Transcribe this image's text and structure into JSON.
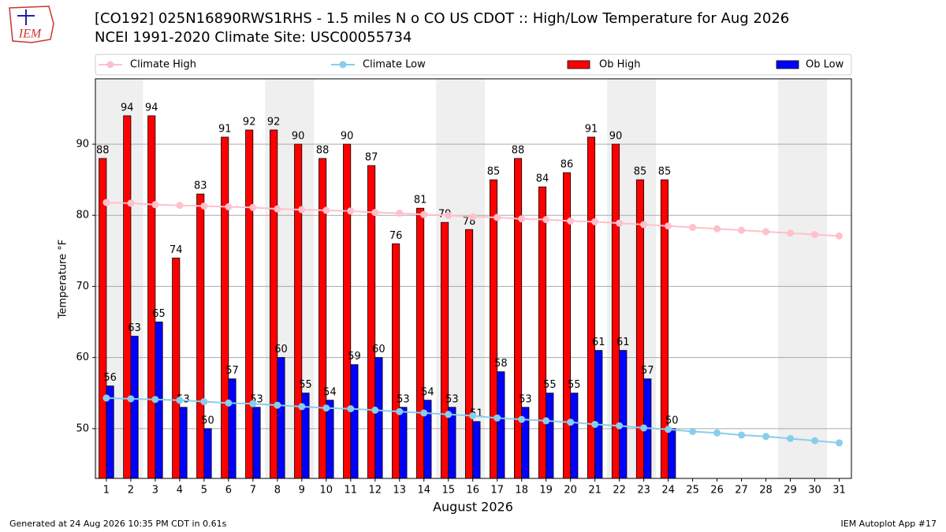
{
  "chart_data": {
    "type": "bar",
    "title": "[CO192] 025N16890RWS1RHS - 1.5 miles N o CO US CDOT :: High/Low Temperature for Aug 2026",
    "subtitle": "NCEI 1991-2020 Climate Site: USC00055734",
    "xlabel": "August 2026",
    "ylabel": "Temperature °F",
    "x": [
      1,
      2,
      3,
      4,
      5,
      6,
      7,
      8,
      9,
      10,
      11,
      12,
      13,
      14,
      15,
      16,
      17,
      18,
      19,
      20,
      21,
      22,
      23,
      24,
      25,
      26,
      27,
      28,
      29,
      30,
      31
    ],
    "xticks": [
      1,
      2,
      3,
      4,
      5,
      6,
      7,
      8,
      9,
      10,
      11,
      12,
      13,
      14,
      15,
      16,
      17,
      18,
      19,
      20,
      21,
      22,
      23,
      24,
      25,
      26,
      27,
      28,
      29,
      30,
      31
    ],
    "xlim": [
      0.55,
      31.5
    ],
    "ylim": [
      43,
      99.2
    ],
    "yticks": [
      50,
      60,
      70,
      80,
      90
    ],
    "grid": true,
    "highlight_bands": [
      [
        0.5,
        2.5
      ],
      [
        7.5,
        9.5
      ],
      [
        14.5,
        16.5
      ],
      [
        21.5,
        23.5
      ],
      [
        28.5,
        30.5
      ]
    ],
    "series": [
      {
        "name": "Climate High",
        "kind": "line",
        "color": "#ffc0cb",
        "values": [
          81.8,
          81.7,
          81.5,
          81.4,
          81.3,
          81.2,
          81.1,
          80.9,
          80.8,
          80.7,
          80.6,
          80.4,
          80.3,
          80.1,
          80.0,
          79.8,
          79.7,
          79.5,
          79.4,
          79.2,
          79.1,
          78.9,
          78.7,
          78.5,
          78.3,
          78.1,
          77.9,
          77.7,
          77.5,
          77.3,
          77.1
        ]
      },
      {
        "name": "Climate Low",
        "kind": "line",
        "color": "#87ceeb",
        "values": [
          54.3,
          54.2,
          54.1,
          54.0,
          53.8,
          53.6,
          53.5,
          53.3,
          53.1,
          52.9,
          52.8,
          52.6,
          52.4,
          52.2,
          52.0,
          51.8,
          51.5,
          51.3,
          51.1,
          50.9,
          50.6,
          50.4,
          50.1,
          49.9,
          49.6,
          49.4,
          49.1,
          48.9,
          48.6,
          48.3,
          48.0
        ]
      },
      {
        "name": "Ob High",
        "kind": "bar",
        "color": "#ff0000",
        "offset": -0.15,
        "values": [
          88,
          94,
          94,
          74,
          83,
          91,
          92,
          92,
          90,
          88,
          90,
          87,
          76,
          81,
          79,
          78,
          85,
          88,
          84,
          86,
          91,
          90,
          85,
          85,
          null,
          null,
          null,
          null,
          null,
          null,
          null
        ]
      },
      {
        "name": "Ob Low",
        "kind": "bar",
        "color": "#0000ff",
        "offset": 0.15,
        "values": [
          56,
          63,
          65,
          53,
          50,
          57,
          53,
          60,
          55,
          54,
          59,
          60,
          53,
          54,
          53,
          51,
          58,
          53,
          55,
          55,
          61,
          61,
          57,
          50,
          null,
          null,
          null,
          null,
          null,
          null,
          null
        ]
      }
    ],
    "footer_left": "Generated at 24 Aug 2026 10:35 PM CDT in 0.61s",
    "footer_right": "IEM Autoplot App #17",
    "logo": "IEM"
  }
}
